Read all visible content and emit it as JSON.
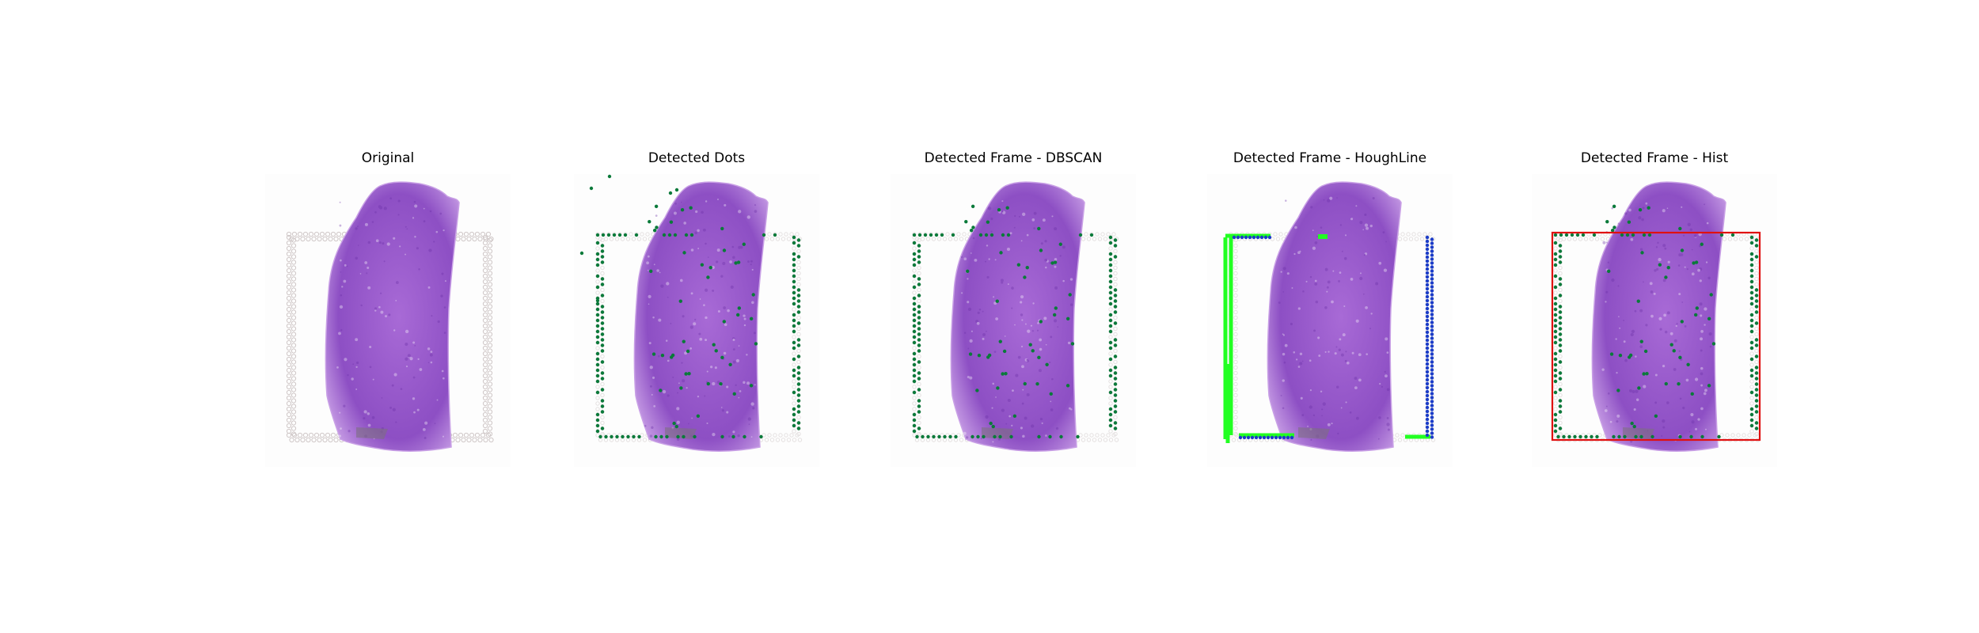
{
  "figure": {
    "panels": [
      {
        "title": "Original",
        "overlay": "none"
      },
      {
        "title": "Detected Dots",
        "overlay": "dots"
      },
      {
        "title": "Detected Frame - DBSCAN",
        "overlay": "dbscan"
      },
      {
        "title": "Detected Frame - HoughLine",
        "overlay": "hough"
      },
      {
        "title": "Detected Frame - Hist",
        "overlay": "hist"
      }
    ]
  },
  "colors": {
    "tissue": "#a86ad6",
    "tissue_dark": "#8d4fc4",
    "tissue_light": "#c9a0e6",
    "frame_dot_gray": "#cfc7c7",
    "detected_dot": "#0a7a3a",
    "hough_green": "#22ff22",
    "hough_blue": "#1b3cc8",
    "hist_frame": "#e01010"
  }
}
